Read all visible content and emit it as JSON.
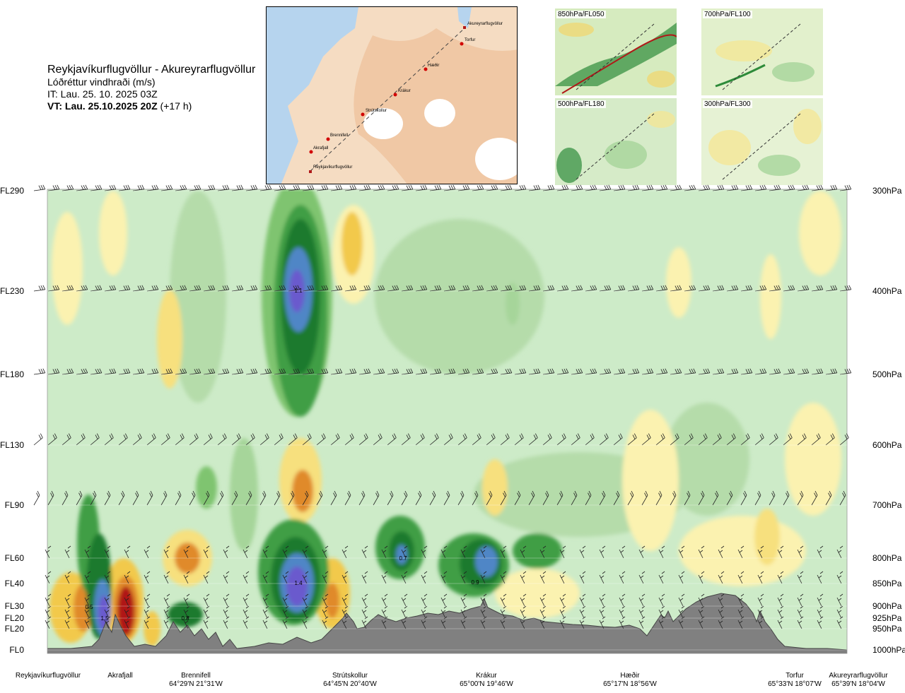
{
  "header": {
    "route": "Reykjavíkurflugvöllur - Akureyrarflugvöllur",
    "variable": "Lóðréttur vindhraði (m/s)",
    "issue_time": "IT: Lau. 25. 10. 2025 03Z",
    "valid_time": "VT: Lau. 25.10.2025 20Z",
    "lead_time": "(+17 h)"
  },
  "route_map": {
    "waypoints": [
      "Akureyrarflugvöllur",
      "Torfur",
      "Hæðir",
      "Krákur",
      "Strútskollur",
      "Brennifell",
      "Akrafjall",
      "Reykjavíkurflugvöllur"
    ]
  },
  "thumbnails": [
    {
      "label": "850hPa/FL050"
    },
    {
      "label": "700hPa/FL100"
    },
    {
      "label": "500hPa/FL180"
    },
    {
      "label": "300hPa/FL300"
    }
  ],
  "chart_data": {
    "type": "heatmap",
    "title": "Lóðréttur vindhraði (m/s)",
    "y_left_ticks": [
      "FL290",
      "FL230",
      "FL180",
      "FL130",
      "FL90",
      "FL60",
      "FL40",
      "FL30",
      "FL20",
      "FL20",
      "FL0"
    ],
    "y_right_ticks": [
      "300hPa",
      "400hPa",
      "500hPa",
      "600hPa",
      "700hPa",
      "800hPa",
      "850hPa",
      "900hPa",
      "925hPa",
      "950hPa",
      "1000hPa"
    ],
    "pressure_levels_hpa": [
      300,
      400,
      500,
      600,
      700,
      800,
      850,
      900,
      925,
      950,
      1000
    ],
    "stations": [
      {
        "name": "Reykjavíkurflugvöllur",
        "coord": ""
      },
      {
        "name": "Akrafjall",
        "coord": ""
      },
      {
        "name": "Brennifell",
        "coord": "64°29'N 21°31'W"
      },
      {
        "name": "Strútskollur",
        "coord": "64°45'N 20°40'W"
      },
      {
        "name": "Krákur",
        "coord": "65°00'N 19°46'W"
      },
      {
        "name": "Hæðir",
        "coord": "65°17'N 18°56'W"
      },
      {
        "name": "Torfur",
        "coord": "65°33'N 18°07'W"
      },
      {
        "name": "Akureyrarflugvöllur",
        "coord": "65°39'N 18°04'W"
      }
    ],
    "annotations": [
      {
        "text": "1.1",
        "near": "Strútskollur",
        "level_hpa": 400
      },
      {
        "text": "1.4",
        "near": "Strútskollur",
        "level_hpa": 850
      },
      {
        "text": "0.7",
        "near": "Krákur",
        "level_hpa": 800
      },
      {
        "text": "0.9",
        "near": "Krákur",
        "level_hpa": 850
      },
      {
        "text": "0.5",
        "near": "Akrafjall",
        "level_hpa": 900
      },
      {
        "text": "1.5",
        "near": "Akrafjall",
        "level_hpa": 925
      },
      {
        "text": "0.8",
        "near": "Brennifell",
        "level_hpa": 925
      }
    ],
    "colors": {
      "strong_up": "#6a5acd",
      "up_2": "#4f86c6",
      "up_1": "#1f7a2e",
      "weak_up": "#a6d59a",
      "background": "#cdebc8",
      "weak_down": "#fbf2b0",
      "down_1": "#f2c94c",
      "down_2": "#e08a2a",
      "strong_down": "#b01818",
      "terrain": "#808080"
    },
    "grid": true
  }
}
